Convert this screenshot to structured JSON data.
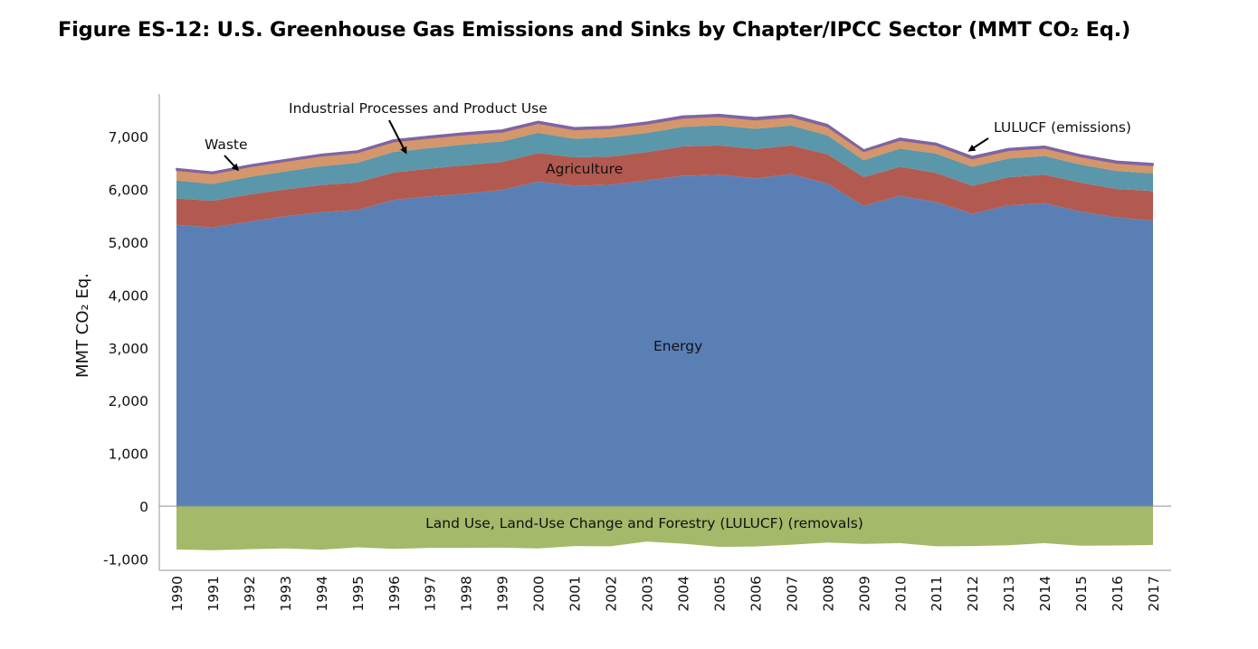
{
  "chart_data": {
    "type": "area",
    "stacked": true,
    "title": "Figure ES-12:  U.S. Greenhouse Gas Emissions and Sinks by Chapter/IPCC Sector (MMT CO₂ Eq.)",
    "xlabel": "",
    "ylabel": "MMT CO₂ Eq.",
    "ylim": [
      -1200,
      7800
    ],
    "yticks": [
      -1000,
      0,
      1000,
      2000,
      3000,
      4000,
      5000,
      6000,
      7000
    ],
    "ytick_labels": [
      "-1,000",
      "0",
      "1,000",
      "2,000",
      "3,000",
      "4,000",
      "5,000",
      "6,000",
      "7,000"
    ],
    "x": [
      "1990",
      "1991",
      "1992",
      "1993",
      "1994",
      "1995",
      "1996",
      "1997",
      "1998",
      "1999",
      "2000",
      "2001",
      "2002",
      "2003",
      "2004",
      "2005",
      "2006",
      "2007",
      "2008",
      "2009",
      "2010",
      "2011",
      "2012",
      "2013",
      "2014",
      "2015",
      "2016",
      "2017"
    ],
    "grid": false,
    "legend": "none (direct annotations)",
    "series": [
      {
        "name": "Energy",
        "color": "#5A7FB5",
        "values": [
          5330,
          5280,
          5390,
          5490,
          5570,
          5610,
          5800,
          5870,
          5920,
          5990,
          6150,
          6070,
          6090,
          6170,
          6260,
          6280,
          6210,
          6290,
          6110,
          5690,
          5880,
          5760,
          5540,
          5700,
          5740,
          5580,
          5470,
          5410
        ]
      },
      {
        "name": "Agriculture",
        "color": "#B35A50",
        "values": [
          500,
          505,
          515,
          510,
          515,
          525,
          520,
          525,
          540,
          530,
          540,
          540,
          535,
          535,
          555,
          555,
          555,
          545,
          555,
          545,
          550,
          555,
          530,
          530,
          540,
          550,
          540,
          560
        ]
      },
      {
        "name": "Industrial Processes and Product Use",
        "color": "#5A97AA",
        "values": [
          340,
          320,
          330,
          340,
          355,
          370,
          390,
          390,
          395,
          390,
          385,
          350,
          365,
          365,
          370,
          380,
          385,
          375,
          360,
          320,
          345,
          365,
          360,
          355,
          355,
          340,
          340,
          335
        ]
      },
      {
        "name": "Waste",
        "color": "#D4966A",
        "values": [
          195,
          195,
          195,
          195,
          195,
          195,
          195,
          190,
          185,
          180,
          180,
          175,
          170,
          170,
          170,
          170,
          170,
          165,
          165,
          165,
          160,
          160,
          155,
          155,
          150,
          150,
          150,
          150
        ]
      },
      {
        "name": "LULUCF (emissions)",
        "color": "#8064A2",
        "values": [
          30,
          30,
          30,
          30,
          30,
          30,
          35,
          35,
          35,
          35,
          35,
          35,
          35,
          35,
          35,
          35,
          40,
          40,
          40,
          30,
          35,
          35,
          40,
          35,
          35,
          35,
          35,
          35
        ]
      },
      {
        "name": "Land Use, Land-Use Change and Forestry (LULUCF) (removals)",
        "color": "#A4B96A",
        "values": [
          -820,
          -835,
          -815,
          -800,
          -825,
          -780,
          -810,
          -790,
          -790,
          -785,
          -800,
          -755,
          -760,
          -670,
          -710,
          -770,
          -765,
          -730,
          -690,
          -715,
          -700,
          -760,
          -755,
          -740,
          -700,
          -750,
          -745,
          -735
        ]
      }
    ],
    "annotations": [
      {
        "id": "waste",
        "text": "Waste",
        "arrow": true
      },
      {
        "id": "ippu",
        "text": "Industrial Processes and Product Use",
        "arrow": true
      },
      {
        "id": "agriculture",
        "text": "Agriculture",
        "arrow": false
      },
      {
        "id": "lulucf_em",
        "text": "LULUCF (emissions)",
        "arrow": true
      },
      {
        "id": "energy",
        "text": "Energy",
        "arrow": false
      },
      {
        "id": "lulucf_rem",
        "text": "Land Use, Land-Use Change and Forestry (LULUCF) (removals)",
        "arrow": false
      }
    ]
  }
}
